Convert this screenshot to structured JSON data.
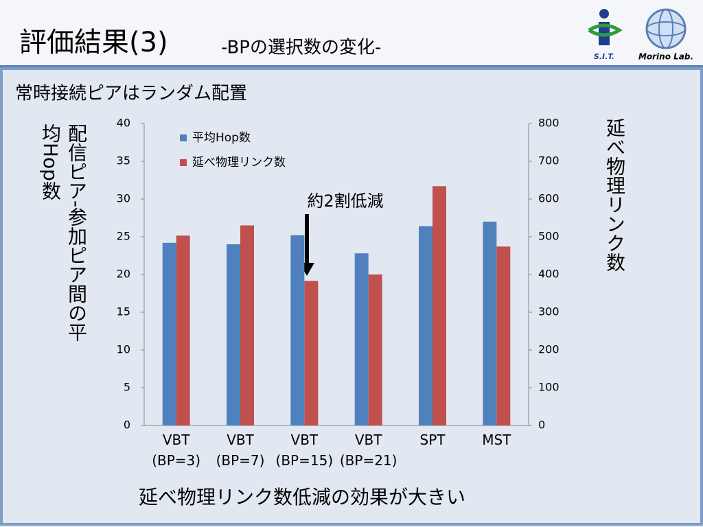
{
  "chart_data": {
    "type": "bar",
    "title": "評価結果(3)",
    "subtitle": "-BPの選択数の変化-",
    "heading": "常時接続ピアはランダム配置",
    "ylabel": "配信ピア-参加ピア間の平均Hop数",
    "y2label": "延べ物理リンク数",
    "annotation": "約2割低減",
    "conclusion": "延べ物理リンク数低減の効果が大きい",
    "categories": [
      "VBT\n(BP=3)",
      "VBT\n(BP=7)",
      "VBT\n(BP=15)",
      "VBT\n(BP=21)",
      "SPT",
      "MST"
    ],
    "series": [
      {
        "name": "平均Hop数",
        "color": "#4f81bd",
        "values": [
          24.2,
          24.0,
          25.2,
          22.8,
          26.4,
          27.0
        ]
      },
      {
        "name": "延べ物理リンク数",
        "color": "#c0504d",
        "axis": "y2",
        "values": [
          503,
          530,
          383,
          400,
          634,
          474
        ]
      }
    ],
    "ylim": [
      0,
      40
    ],
    "yticks": [
      0,
      5,
      10,
      15,
      20,
      25,
      30,
      35,
      40
    ],
    "y2lim": [
      0,
      800
    ],
    "y2ticks": [
      0,
      100,
      200,
      300,
      400,
      500,
      600,
      700,
      800
    ],
    "grid": false,
    "legend": "top-left"
  },
  "logos": [
    "S.I.T.",
    "Morino Lab."
  ]
}
